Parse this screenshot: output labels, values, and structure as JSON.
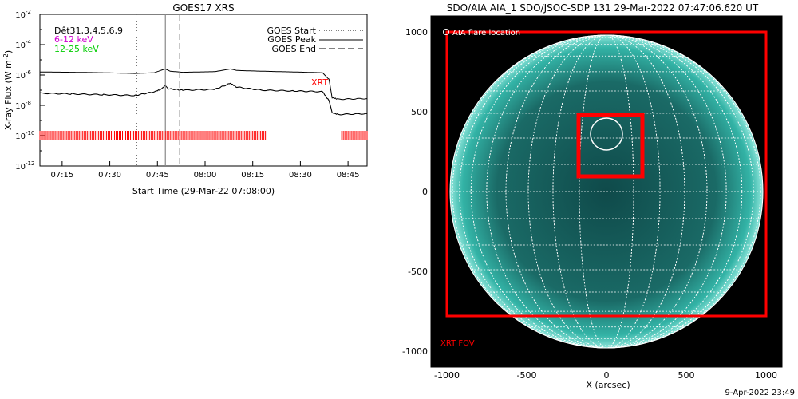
{
  "chart_data": [
    {
      "type": "line",
      "title": "GOES17 XRS",
      "xlabel": "Start Time (29-Mar-22 07:08:00)",
      "ylabel": "X-ray Flux (W m",
      "ylabel_sup": "-2",
      "ylabel_close": ")",
      "yscale": "log",
      "ylim_exp": [
        -12,
        -2
      ],
      "y_ticks": [
        {
          "exp": -2,
          "label": "10",
          "sup": "-2"
        },
        {
          "exp": -4,
          "label": "10",
          "sup": "-4"
        },
        {
          "exp": -6,
          "label": "10",
          "sup": "-6"
        },
        {
          "exp": -8,
          "label": "10",
          "sup": "-8"
        },
        {
          "exp": -10,
          "label": "10",
          "sup": "-10"
        },
        {
          "exp": -12,
          "label": "10",
          "sup": "-12"
        }
      ],
      "xlim_min": [
        0,
        63
      ],
      "x_ticks": [
        {
          "min": 7,
          "label": "07:15"
        },
        {
          "min": 22,
          "label": "07:30"
        },
        {
          "min": 37,
          "label": "07:45"
        },
        {
          "min": 52,
          "label": "08:00"
        },
        {
          "min": 67,
          "label": "08:15"
        },
        {
          "min": 82,
          "label": "08:30"
        },
        {
          "min": 97,
          "label": "08:45"
        }
      ],
      "x_range_minutes": [
        0,
        103
      ],
      "legend_top_left": [
        {
          "text": "Dêt31,3,4,5,6,9",
          "color": "#000000"
        },
        {
          "text": "6-12 keV",
          "color": "#d000d0"
        },
        {
          "text": "12-25 keV",
          "color": "#00cc00"
        }
      ],
      "legend_top_right": [
        {
          "text": "GOES Start",
          "style": "dotted"
        },
        {
          "text": "GOES Peak",
          "style": "solid"
        },
        {
          "text": "GOES End",
          "style": "dashed"
        }
      ],
      "markers": {
        "goes_start_min": 30.5,
        "goes_peak_min": 39.5,
        "goes_end_min": 44
      },
      "xrt_label": "XRT",
      "series": [
        {
          "name": "GOES long",
          "points": [
            [
              0,
              -5.8
            ],
            [
              10,
              -5.82
            ],
            [
              20,
              -5.85
            ],
            [
              30,
              -5.9
            ],
            [
              36,
              -5.85
            ],
            [
              38,
              -5.7
            ],
            [
              39.5,
              -5.6
            ],
            [
              41,
              -5.75
            ],
            [
              45,
              -5.82
            ],
            [
              55,
              -5.78
            ],
            [
              60,
              -5.6
            ],
            [
              62,
              -5.7
            ],
            [
              70,
              -5.75
            ],
            [
              80,
              -5.8
            ],
            [
              89,
              -5.85
            ],
            [
              91,
              -6.3
            ],
            [
              92,
              -7.5
            ],
            [
              94,
              -7.6
            ],
            [
              103,
              -7.55
            ]
          ]
        },
        {
          "name": "GOES short",
          "points": [
            [
              0,
              -7.2
            ],
            [
              10,
              -7.25
            ],
            [
              20,
              -7.3
            ],
            [
              30,
              -7.35
            ],
            [
              36,
              -7.1
            ],
            [
              38,
              -6.95
            ],
            [
              39.5,
              -6.7
            ],
            [
              40.5,
              -6.9
            ],
            [
              45,
              -7.0
            ],
            [
              55,
              -6.95
            ],
            [
              60,
              -6.55
            ],
            [
              62,
              -6.8
            ],
            [
              70,
              -7.0
            ],
            [
              80,
              -7.05
            ],
            [
              89,
              -7.1
            ],
            [
              91,
              -7.7
            ],
            [
              92,
              -8.5
            ],
            [
              94,
              -8.6
            ],
            [
              103,
              -8.55
            ]
          ]
        }
      ],
      "xrt_coverage_min": [
        [
          0,
          71
        ],
        [
          95,
          103
        ]
      ]
    },
    {
      "type": "scatter",
      "title": "SDO/AIA AIA_1 SDO/JSOC-SDP 131 29-Mar-2022 07:47:06.620 UT",
      "xlabel": "X (arcsec)",
      "ylabel": "",
      "xlim": [
        -1000,
        1000
      ],
      "ylim": [
        -1000,
        1000
      ],
      "x_ticks": [
        -1000,
        -500,
        0,
        500,
        1000
      ],
      "y_ticks": [
        1000,
        500,
        0,
        -500,
        -1000
      ],
      "x_tick_labels": [
        "-1000",
        "-500",
        "0",
        "500",
        "1000"
      ],
      "y_tick_labels": [
        "1000",
        "500",
        "0",
        "-500",
        "-1000"
      ],
      "legend": "AIA flare location",
      "xrt_fov_label": "XRT FOV",
      "xrt_fov_box": {
        "x0": -1000,
        "x1": 1000,
        "y0": -780,
        "y1": 1000
      },
      "zoom_box": {
        "x0": -175,
        "x1": 225,
        "y0": 95,
        "y1": 480
      },
      "flare_location": {
        "x": 0,
        "y": 360,
        "r": 100
      },
      "solar_radius": 980
    }
  ],
  "footer": {
    "date": "9-Apr-2022 23:49"
  },
  "colors": {
    "red": "#ff0000",
    "sun": "#33b3a6",
    "sun_dark": "#0d3f40",
    "grid": "#ffffff"
  }
}
